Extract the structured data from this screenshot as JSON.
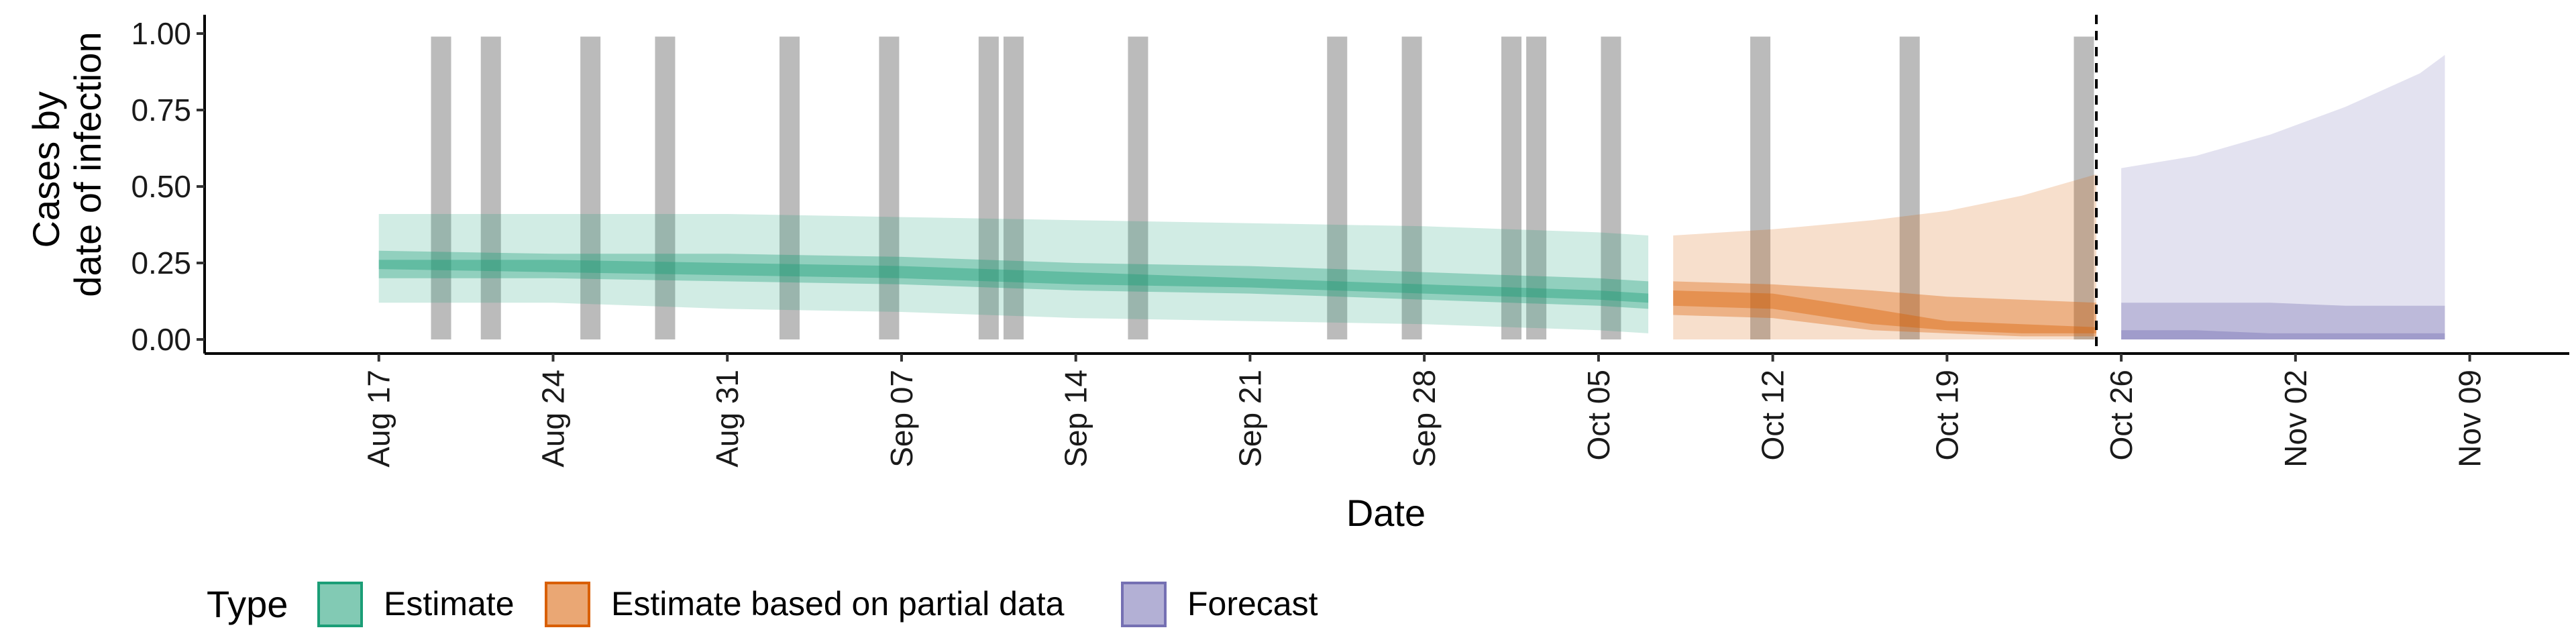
{
  "chart_data": {
    "type": "area",
    "ylabel": [
      "Cases by",
      "date of infection"
    ],
    "xlabel": "Date",
    "ylim": [
      0,
      1
    ],
    "yticks": [
      0,
      0.25,
      0.5,
      0.75,
      1
    ],
    "ytick_labels": [
      "0.00",
      "0.25",
      "0.50",
      "0.75",
      "1.00"
    ],
    "xlim": [
      "2020-08-10",
      "2020-11-13"
    ],
    "xticks": [
      "2020-08-17",
      "2020-08-24",
      "2020-08-31",
      "2020-09-07",
      "2020-09-14",
      "2020-09-21",
      "2020-09-28",
      "2020-10-05",
      "2020-10-12",
      "2020-10-19",
      "2020-10-26",
      "2020-11-02",
      "2020-11-09"
    ],
    "xtick_labels": [
      "Aug 17",
      "Aug 24",
      "Aug 31",
      "Sep 07",
      "Sep 14",
      "Sep 21",
      "Sep 28",
      "Oct 05",
      "Oct 12",
      "Oct 19",
      "Oct 26",
      "Nov 02",
      "Nov 09"
    ],
    "forecast_cutoff": "2020-10-25",
    "reported_case_days": [
      "2020-08-19",
      "2020-08-21",
      "2020-08-25",
      "2020-08-28",
      "2020-09-02",
      "2020-09-06",
      "2020-09-10",
      "2020-09-11",
      "2020-09-16",
      "2020-09-24",
      "2020-09-27",
      "2020-10-01",
      "2020-10-02",
      "2020-10-05",
      "2020-10-11",
      "2020-10-17",
      "2020-10-24"
    ],
    "legend": {
      "title": "Type",
      "position": "bottom-left",
      "entries": [
        {
          "label": "Estimate",
          "color": "#1b9e77"
        },
        {
          "label": "Estimate based on partial data",
          "color": "#d95f02"
        },
        {
          "label": "Forecast",
          "color": "#7570b3"
        }
      ]
    },
    "series": [
      {
        "name": "Estimate",
        "color": "#1b9e77",
        "x": [
          "2020-08-17",
          "2020-08-24",
          "2020-08-31",
          "2020-09-07",
          "2020-09-14",
          "2020-09-21",
          "2020-09-28",
          "2020-10-05",
          "2020-10-07"
        ],
        "upper90": [
          0.41,
          0.41,
          0.41,
          0.4,
          0.39,
          0.38,
          0.37,
          0.35,
          0.34
        ],
        "lower90": [
          0.12,
          0.12,
          0.1,
          0.09,
          0.07,
          0.06,
          0.05,
          0.03,
          0.02
        ],
        "upper50": [
          0.29,
          0.28,
          0.28,
          0.27,
          0.25,
          0.24,
          0.22,
          0.2,
          0.19
        ],
        "lower50": [
          0.2,
          0.2,
          0.19,
          0.18,
          0.16,
          0.15,
          0.13,
          0.11,
          0.1
        ],
        "upper20": [
          0.26,
          0.26,
          0.25,
          0.24,
          0.22,
          0.2,
          0.18,
          0.16,
          0.15
        ],
        "lower20": [
          0.23,
          0.22,
          0.21,
          0.2,
          0.18,
          0.17,
          0.15,
          0.13,
          0.12
        ]
      },
      {
        "name": "Estimate based on partial data",
        "color": "#d95f02",
        "x": [
          "2020-10-08",
          "2020-10-12",
          "2020-10-16",
          "2020-10-19",
          "2020-10-22",
          "2020-10-25"
        ],
        "upper90": [
          0.34,
          0.36,
          0.39,
          0.42,
          0.47,
          0.54
        ],
        "lower90": [
          0.0,
          0.0,
          0.0,
          0.0,
          0.0,
          0.0
        ],
        "upper50": [
          0.19,
          0.18,
          0.16,
          0.14,
          0.13,
          0.12
        ],
        "lower50": [
          0.08,
          0.07,
          0.03,
          0.02,
          0.01,
          0.01
        ],
        "upper20": [
          0.16,
          0.15,
          0.1,
          0.06,
          0.05,
          0.04
        ],
        "lower20": [
          0.11,
          0.1,
          0.05,
          0.03,
          0.02,
          0.02
        ]
      },
      {
        "name": "Forecast",
        "color": "#7570b3",
        "x": [
          "2020-10-26",
          "2020-10-29",
          "2020-11-01",
          "2020-11-04",
          "2020-11-07",
          "2020-11-08"
        ],
        "upper90": [
          0.56,
          0.6,
          0.67,
          0.76,
          0.87,
          0.93
        ],
        "lower90": [
          0.0,
          0.0,
          0.0,
          0.0,
          0.0,
          0.0
        ],
        "upper50": [
          0.12,
          0.12,
          0.12,
          0.11,
          0.11,
          0.11
        ],
        "lower50": [
          0.0,
          0.0,
          0.0,
          0.0,
          0.0,
          0.0
        ],
        "upper20": [
          0.03,
          0.03,
          0.02,
          0.02,
          0.02,
          0.02
        ],
        "lower20": [
          0.0,
          0.0,
          0.0,
          0.0,
          0.0,
          0.0
        ]
      }
    ]
  }
}
